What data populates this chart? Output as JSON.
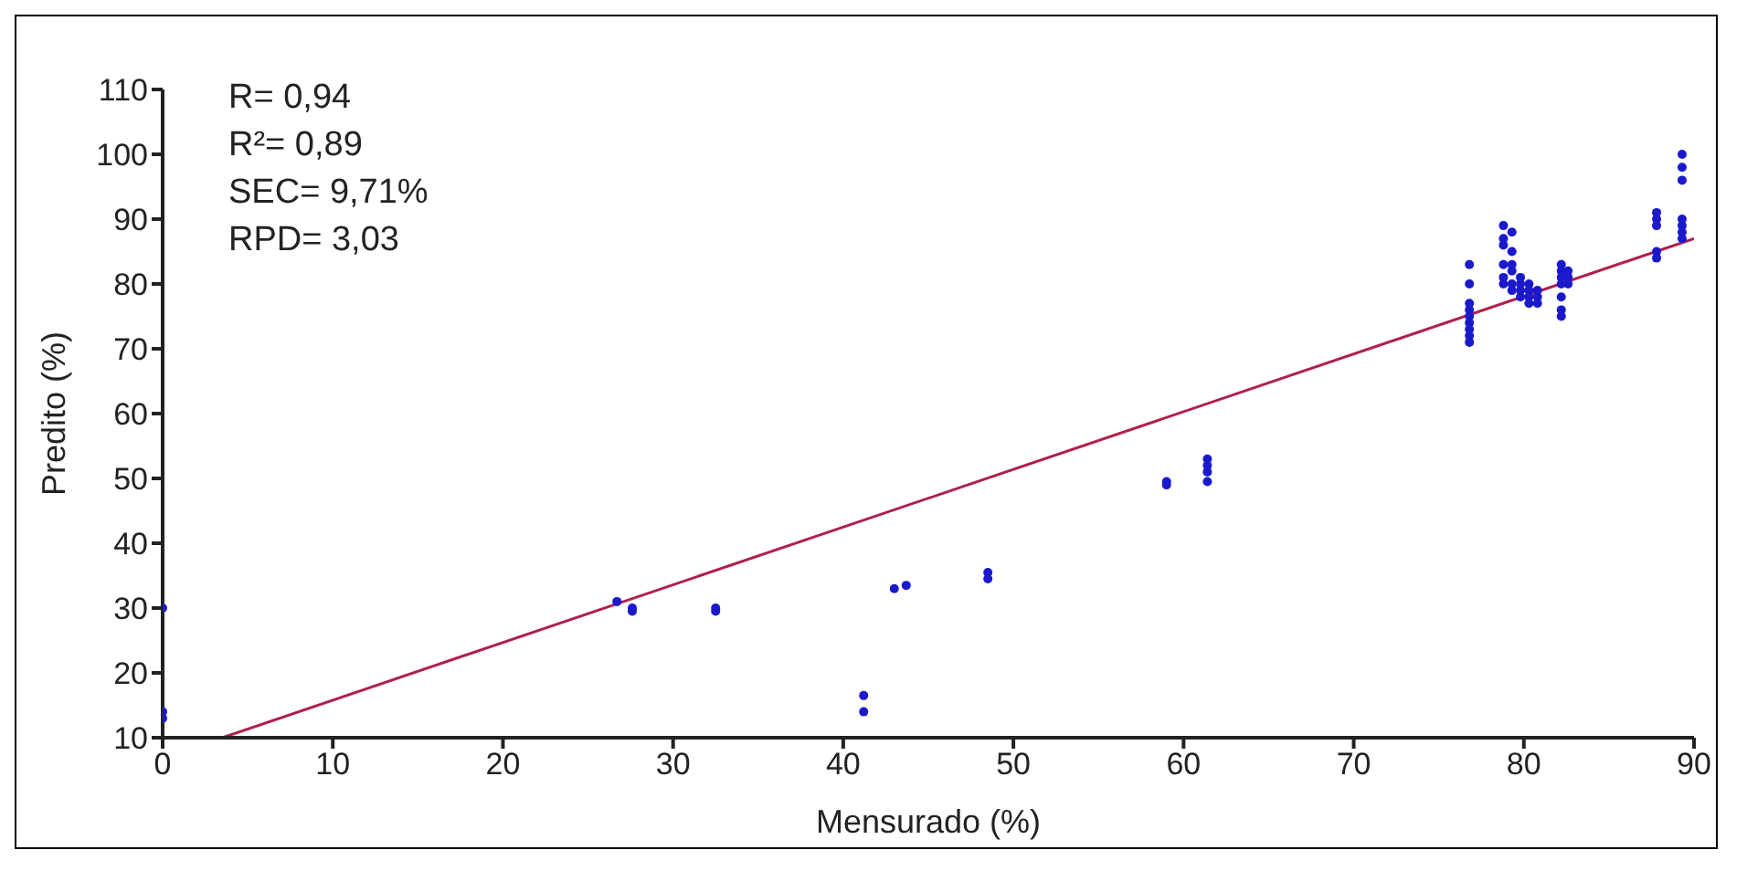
{
  "chart_data": {
    "type": "scatter",
    "xlabel": "Mensurado (%)",
    "ylabel": "Predito (%)",
    "annotations": [
      "R= 0,94",
      "R²= 0,89",
      "SEC= 9,71%",
      "RPD= 3,03"
    ],
    "xlim": [
      0,
      90
    ],
    "xticks": [
      0,
      10,
      20,
      30,
      40,
      50,
      60,
      70,
      80,
      90
    ],
    "ylim": [
      10,
      110
    ],
    "yticks": [
      10,
      20,
      30,
      40,
      50,
      60,
      70,
      80,
      90,
      100,
      110
    ],
    "grid": false,
    "series": [
      {
        "marker": "circle",
        "color": "#1a1acc",
        "x": [
          0,
          0,
          0,
          26.7,
          27.6,
          27.6,
          32.5,
          32.5,
          41.2,
          41.2,
          43,
          43.7,
          48.5,
          48.5,
          59,
          59,
          61.4,
          61.4,
          61.4,
          61.4,
          76.8,
          76.8,
          76.8,
          76.8,
          76.8,
          76.8,
          76.8,
          76.8,
          76.8,
          78.8,
          78.8,
          78.8,
          78.8,
          78.8,
          78.8,
          79.3,
          79.3,
          79.3,
          79.3,
          79.3,
          79.3,
          79.8,
          79.8,
          79.8,
          79.8,
          80.3,
          80.3,
          80.3,
          80.3,
          80.8,
          80.8,
          80.8,
          82.2,
          82.2,
          82.2,
          82.2,
          82.2,
          82.2,
          82.2,
          82.6,
          82.6,
          82.6,
          87.8,
          87.8,
          87.8,
          87.8,
          87.8,
          89.3,
          89.3,
          89.3,
          89.3,
          89.3,
          89.3,
          89.3
        ],
        "values": [
          30,
          14,
          13,
          31,
          30,
          29.5,
          30,
          29.5,
          16.5,
          14,
          33,
          33.5,
          35.5,
          34.5,
          49.5,
          49,
          53,
          52,
          51,
          49.5,
          83,
          80,
          77,
          76,
          75,
          74,
          73,
          72,
          71,
          89,
          87,
          86,
          83,
          81,
          80,
          88,
          85,
          83,
          82,
          80,
          79,
          81,
          80,
          79,
          78,
          80,
          79,
          78,
          77,
          79,
          78,
          77,
          83,
          82,
          81,
          80,
          78,
          76,
          75,
          82,
          81,
          80,
          91,
          90,
          89,
          85,
          84,
          100,
          98,
          96,
          90,
          89,
          88,
          87
        ]
      },
      {
        "type": "line",
        "color": "#b0204a",
        "x": [
          3.5,
          90
        ],
        "values": [
          10,
          87
        ]
      }
    ]
  }
}
